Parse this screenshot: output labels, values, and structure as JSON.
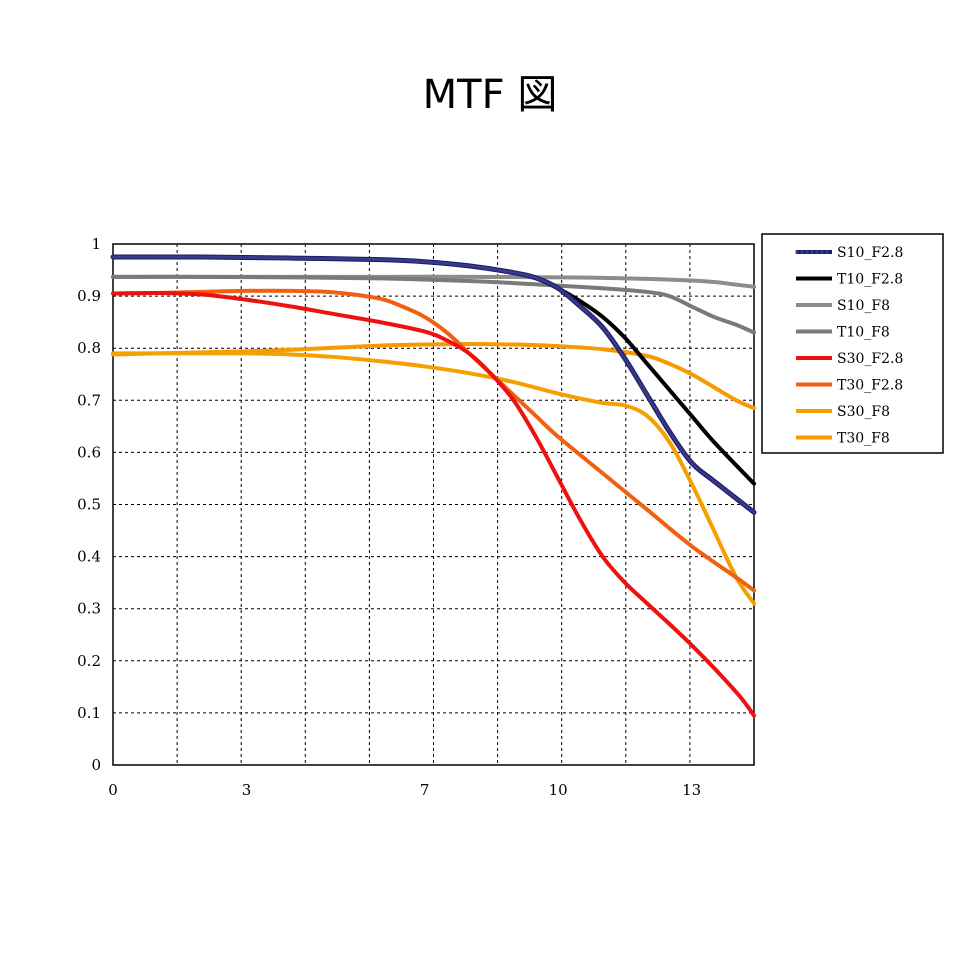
{
  "chart_data": {
    "type": "line",
    "title": "MTF 図",
    "xlabel": "",
    "ylabel": "",
    "xlim": [
      0,
      14.4
    ],
    "ylim": [
      0,
      1
    ],
    "x_ticks": [
      0,
      3,
      7,
      10,
      13
    ],
    "y_ticks": [
      0,
      0.1,
      0.2,
      0.3,
      0.4,
      0.5,
      0.6,
      0.7,
      0.8,
      0.9,
      1
    ],
    "grid": true,
    "legend_position": "right",
    "series": [
      {
        "name": "S10_F2.8",
        "color": "#1a1a66",
        "markers": true,
        "x": [
          0,
          2,
          4,
          6,
          7,
          8,
          9,
          9.5,
          10,
          10.5,
          11,
          11.5,
          12,
          12.5,
          13,
          13.5,
          14.4
        ],
        "y": [
          0.975,
          0.975,
          0.973,
          0.97,
          0.966,
          0.958,
          0.945,
          0.935,
          0.915,
          0.88,
          0.84,
          0.78,
          0.71,
          0.64,
          0.58,
          0.545,
          0.485
        ]
      },
      {
        "name": "T10_F2.8",
        "color": "#000000",
        "x": [
          0,
          2,
          4,
          6,
          7,
          8,
          9,
          9.5,
          10,
          10.5,
          11,
          11.5,
          12,
          12.5,
          13,
          13.5,
          14.4
        ],
        "y": [
          0.975,
          0.975,
          0.973,
          0.97,
          0.966,
          0.958,
          0.945,
          0.935,
          0.915,
          0.89,
          0.86,
          0.82,
          0.77,
          0.72,
          0.67,
          0.62,
          0.54
        ]
      },
      {
        "name": "S10_F8",
        "color": "#8c8c8c",
        "x": [
          0,
          2,
          4,
          6,
          8,
          10,
          11,
          12,
          13,
          13.5,
          14,
          14.4
        ],
        "y": [
          0.937,
          0.937,
          0.937,
          0.937,
          0.937,
          0.936,
          0.935,
          0.933,
          0.93,
          0.927,
          0.922,
          0.918
        ]
      },
      {
        "name": "T10_F8",
        "color": "#7a7a7a",
        "x": [
          0,
          2,
          4,
          6,
          8,
          9,
          10,
          11,
          12,
          12.5,
          13,
          13.5,
          14,
          14.4
        ],
        "y": [
          0.937,
          0.937,
          0.936,
          0.934,
          0.929,
          0.925,
          0.92,
          0.915,
          0.908,
          0.9,
          0.88,
          0.86,
          0.845,
          0.83
        ]
      },
      {
        "name": "S30_F2.8",
        "color": "#ee1111",
        "x": [
          0,
          1,
          2,
          3,
          4,
          5,
          6,
          7,
          7.5,
          8,
          8.5,
          9,
          9.5,
          10,
          10.5,
          11,
          11.5,
          12,
          13,
          14,
          14.4
        ],
        "y": [
          0.905,
          0.906,
          0.903,
          0.893,
          0.88,
          0.865,
          0.85,
          0.832,
          0.815,
          0.79,
          0.75,
          0.7,
          0.63,
          0.55,
          0.47,
          0.4,
          0.35,
          0.31,
          0.23,
          0.14,
          0.095
        ]
      },
      {
        "name": "T30_F2.8",
        "color": "#f06010",
        "x": [
          0,
          1,
          2,
          3,
          4,
          5,
          6,
          6.5,
          7,
          7.5,
          8,
          8.5,
          9,
          9.5,
          10,
          11,
          12,
          13,
          14,
          14.4
        ],
        "y": [
          0.905,
          0.906,
          0.908,
          0.91,
          0.91,
          0.907,
          0.895,
          0.88,
          0.86,
          0.83,
          0.79,
          0.75,
          0.71,
          0.67,
          0.63,
          0.56,
          0.49,
          0.42,
          0.36,
          0.335
        ]
      },
      {
        "name": "S30_F8",
        "color": "#f5a000",
        "x": [
          0,
          1,
          2,
          3,
          4,
          5,
          6,
          7,
          8,
          9,
          10,
          11,
          11.5,
          12,
          12.5,
          13,
          13.5,
          14,
          14.4
        ],
        "y": [
          0.79,
          0.79,
          0.79,
          0.79,
          0.788,
          0.783,
          0.775,
          0.765,
          0.752,
          0.735,
          0.713,
          0.695,
          0.69,
          0.67,
          0.62,
          0.54,
          0.45,
          0.36,
          0.31
        ]
      },
      {
        "name": "T30_F8",
        "color": "#f59a00",
        "x": [
          0,
          1,
          2,
          3,
          4,
          5,
          6,
          7,
          8,
          9,
          10,
          11,
          12,
          12.5,
          13,
          13.5,
          14,
          14.4
        ],
        "y": [
          0.788,
          0.79,
          0.792,
          0.794,
          0.797,
          0.801,
          0.805,
          0.807,
          0.808,
          0.807,
          0.804,
          0.798,
          0.785,
          0.77,
          0.75,
          0.725,
          0.7,
          0.685
        ]
      }
    ]
  }
}
